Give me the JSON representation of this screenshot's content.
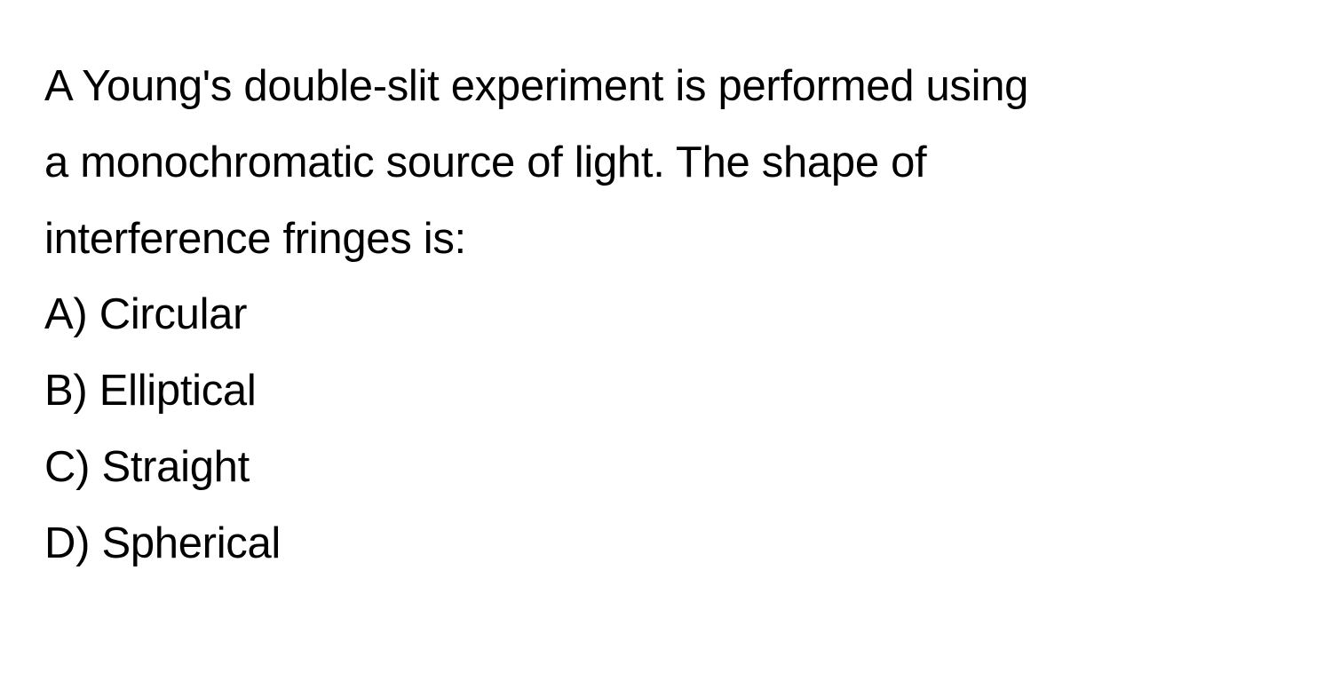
{
  "question": {
    "text_line1": "A Young's double-slit experiment is performed using",
    "text_line2": "a monochromatic source of light. The shape of",
    "text_line3": "interference fringes is:",
    "font_size": 49,
    "text_color": "#000000",
    "background_color": "#ffffff"
  },
  "options": [
    {
      "label": "A)",
      "text": "Circular"
    },
    {
      "label": "B)",
      "text": "Elliptical"
    },
    {
      "label": "C)",
      "text": "Straight"
    },
    {
      "label": "D)",
      "text": "Spherical"
    }
  ]
}
